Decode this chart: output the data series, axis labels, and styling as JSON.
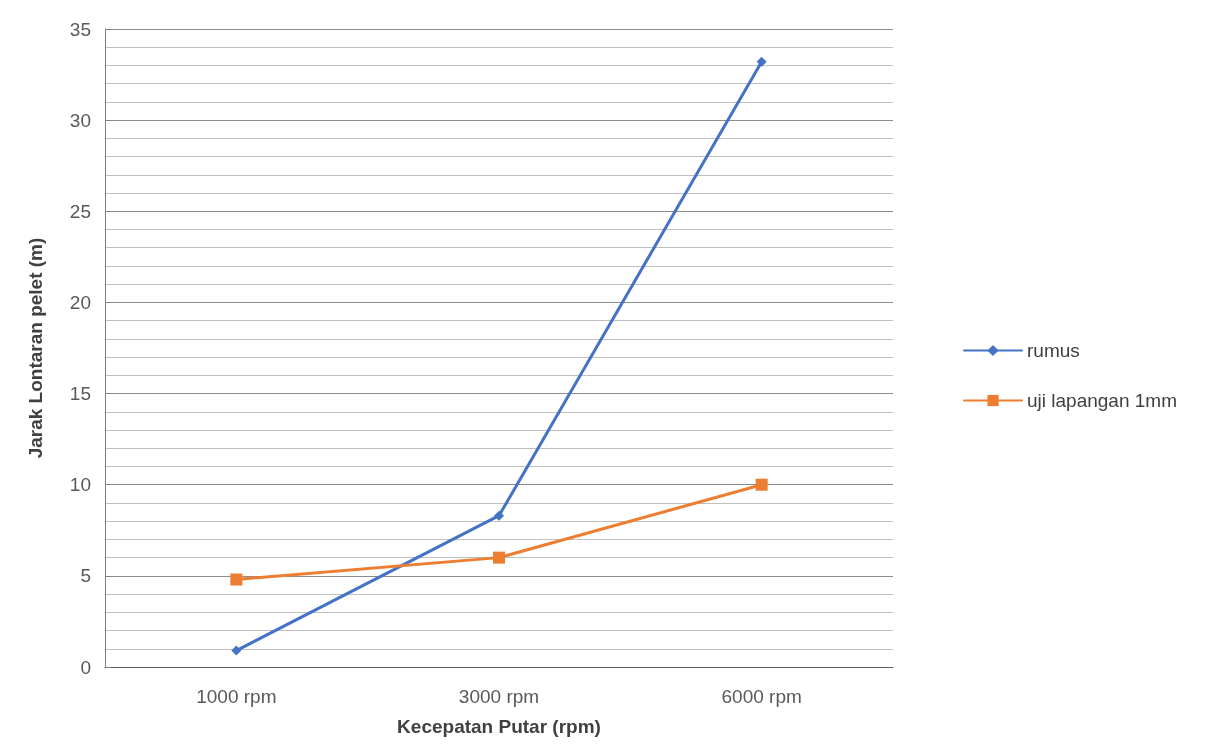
{
  "chart_data": {
    "type": "line",
    "xlabel": "Kecepatan Putar (rpm)",
    "ylabel": "Jarak Lontaran pelet (m)",
    "categories": [
      "1000 rpm",
      "3000 rpm",
      "6000 rpm"
    ],
    "series": [
      {
        "name": "rumus",
        "color": "#4472c4",
        "marker": "diamond",
        "values": [
          0.9,
          8.3,
          33.2
        ]
      },
      {
        "name": "uji lapangan 1mm",
        "color": "#ed7d31",
        "marker": "square",
        "values": [
          4.8,
          6.0,
          10.0
        ]
      }
    ],
    "ylim": [
      0,
      35
    ],
    "yticks": [
      0,
      5,
      10,
      15,
      20,
      25,
      30,
      35
    ],
    "grid": "y",
    "legend": "right",
    "line_style": "solid"
  }
}
